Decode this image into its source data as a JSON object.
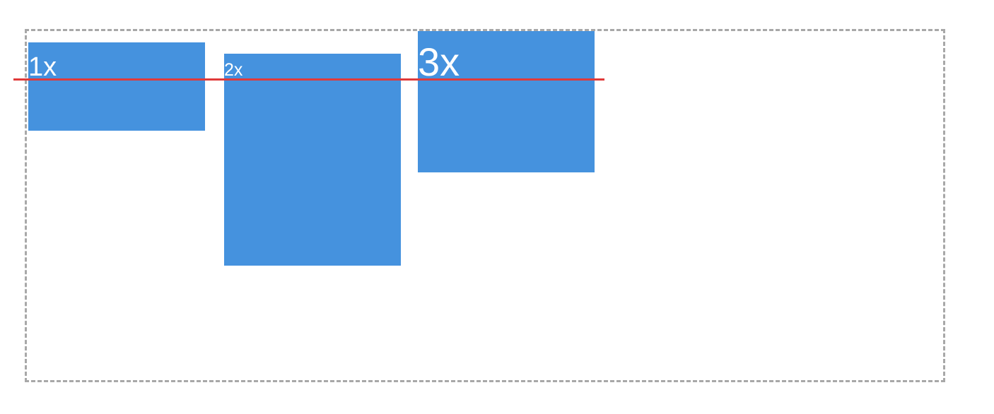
{
  "boxes": [
    {
      "label": "1x"
    },
    {
      "label": "2x"
    },
    {
      "label": "3x"
    }
  ],
  "colors": {
    "box_fill": "#4592de",
    "box_text": "#ffffff",
    "baseline": "#e03a3a",
    "container_border": "#a8a8a8"
  }
}
